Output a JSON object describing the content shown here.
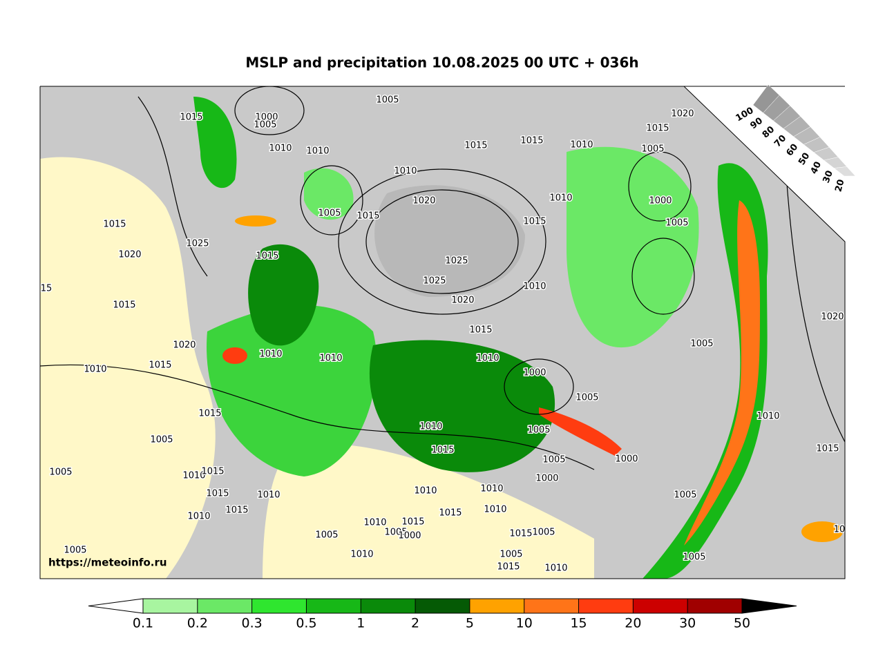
{
  "title": "MSLP and precipitation 10.08.2025 00 UTC + 036h",
  "map": {
    "watermark": "https://meteoinfo.ru",
    "isobar_labels": [
      1015,
      1000,
      1005,
      1005,
      1010,
      1010,
      1010,
      1015,
      1015,
      1010,
      1020,
      1015,
      1005,
      1000,
      1005,
      1010,
      1015,
      1020,
      1005,
      1015,
      1015,
      1025,
      1020,
      1015,
      1025,
      1025,
      1020,
      1010,
      1015,
      1015,
      1020,
      1005,
      1020,
      1010,
      1010,
      1010,
      1015,
      1010,
      1000,
      1005,
      1015,
      1010,
      1010,
      1005,
      1005,
      1015,
      1015,
      1005,
      1000,
      1005,
      1010,
      1015,
      1000,
      1015,
      1010,
      1010,
      1010,
      1005,
      1015,
      1010,
      1010,
      1015,
      1010,
      1015,
      1005,
      1005,
      1000,
      1015,
      1005,
      1005,
      1010,
      1005,
      1005,
      1015,
      1010,
      15,
      10
    ]
  },
  "cloud_gauge": {
    "labels": [
      100,
      90,
      80,
      70,
      60,
      50,
      40,
      30,
      20
    ]
  },
  "colorbar": {
    "ticks": [
      0.1,
      0.2,
      0.3,
      0.5,
      1,
      2,
      5,
      10,
      15,
      20,
      30,
      50
    ],
    "colors": [
      "#ffffff",
      "#a8f5a0",
      "#6be866",
      "#2fe62f",
      "#17b817",
      "#0a8a0a",
      "#055a05",
      "#ffa200",
      "#ff7418",
      "#ff3c10",
      "#cc0000",
      "#a00000",
      "#000000"
    ]
  }
}
